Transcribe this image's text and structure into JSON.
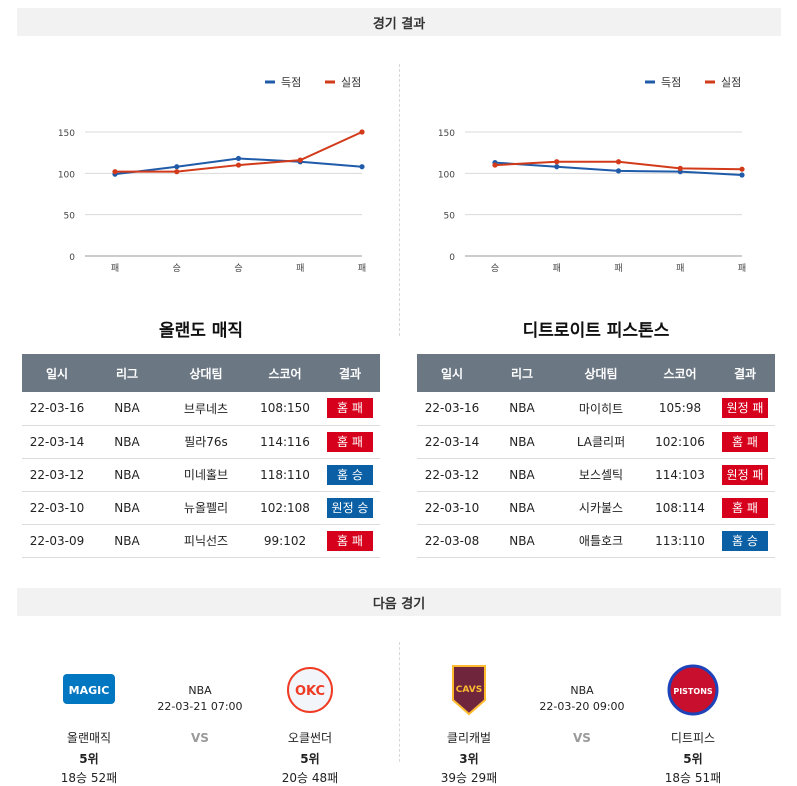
{
  "sections": {
    "results_title": "경기 결과",
    "next_title": "다음 경기"
  },
  "legend": {
    "scored": "득점",
    "allowed": "실점",
    "scored_color": "#1f5ba8",
    "allowed_color": "#d23a1a"
  },
  "charts": [
    {
      "chart_data": {
        "type": "line",
        "categories": [
          "패",
          "승",
          "승",
          "패",
          "패"
        ],
        "series": [
          {
            "name": "득점",
            "values": [
              99,
              108,
              118,
              114,
              108
            ]
          },
          {
            "name": "실점",
            "values": [
              102,
              102,
              110,
              116,
              150
            ]
          }
        ],
        "ylim": [
          0,
          150
        ],
        "yticks": [
          0,
          50,
          100,
          150
        ],
        "grid": true,
        "legend": "top-right"
      }
    },
    {
      "chart_data": {
        "type": "line",
        "categories": [
          "승",
          "패",
          "패",
          "패",
          "패"
        ],
        "series": [
          {
            "name": "득점",
            "values": [
              113,
              108,
              103,
              102,
              98
            ]
          },
          {
            "name": "실점",
            "values": [
              110,
              114,
              114,
              106,
              105
            ]
          }
        ],
        "ylim": [
          0,
          150
        ],
        "yticks": [
          0,
          50,
          100,
          150
        ],
        "grid": true,
        "legend": "top-right"
      }
    }
  ],
  "teams": [
    {
      "name": "올랜도 매직",
      "headers": [
        "일시",
        "리그",
        "상대팀",
        "스코어",
        "결과"
      ],
      "rows": [
        {
          "date": "22-03-16",
          "league": "NBA",
          "opp": "브루네츠",
          "score": "108:150",
          "result": "홈 패",
          "type": "loss"
        },
        {
          "date": "22-03-14",
          "league": "NBA",
          "opp": "필라76s",
          "score": "114:116",
          "result": "홈 패",
          "type": "loss"
        },
        {
          "date": "22-03-12",
          "league": "NBA",
          "opp": "미네홀브",
          "score": "118:110",
          "result": "홈 승",
          "type": "win"
        },
        {
          "date": "22-03-10",
          "league": "NBA",
          "opp": "뉴올펠리",
          "score": "102:108",
          "result": "원정 승",
          "type": "win"
        },
        {
          "date": "22-03-09",
          "league": "NBA",
          "opp": "피닉선즈",
          "score": "99:102",
          "result": "홈 패",
          "type": "loss"
        }
      ]
    },
    {
      "name": "디트로이트 피스톤스",
      "headers": [
        "일시",
        "리그",
        "상대팀",
        "스코어",
        "결과"
      ],
      "rows": [
        {
          "date": "22-03-16",
          "league": "NBA",
          "opp": "마이히트",
          "score": "105:98",
          "result": "원정 패",
          "type": "loss"
        },
        {
          "date": "22-03-14",
          "league": "NBA",
          "opp": "LA클리퍼",
          "score": "102:106",
          "result": "홈 패",
          "type": "loss"
        },
        {
          "date": "22-03-12",
          "league": "NBA",
          "opp": "보스셀틱",
          "score": "114:103",
          "result": "원정 패",
          "type": "loss"
        },
        {
          "date": "22-03-10",
          "league": "NBA",
          "opp": "시카불스",
          "score": "108:114",
          "result": "홈 패",
          "type": "loss"
        },
        {
          "date": "22-03-08",
          "league": "NBA",
          "opp": "애틀호크",
          "score": "113:110",
          "result": "홈 승",
          "type": "win"
        }
      ]
    }
  ],
  "next": [
    {
      "league": "NBA",
      "datetime": "22-03-21 07:00",
      "vs": "VS",
      "home": {
        "name": "올랜매직",
        "rank": "5위",
        "record": "18승 52패",
        "logo_text": "MAGIC",
        "logo_color": "#0077c0"
      },
      "away": {
        "name": "오클썬더",
        "rank": "5위",
        "record": "20승 48패",
        "logo_text": "OKC",
        "logo_color": "#ef3b24"
      }
    },
    {
      "league": "NBA",
      "datetime": "22-03-20 09:00",
      "vs": "VS",
      "home": {
        "name": "클리캐벌",
        "rank": "3위",
        "record": "39승 29패",
        "logo_text": "CAVS",
        "logo_color": "#6f263d"
      },
      "away": {
        "name": "디트피스",
        "rank": "5위",
        "record": "18승 51패",
        "logo_text": "PISTONS",
        "logo_color": "#c8102e"
      }
    }
  ]
}
